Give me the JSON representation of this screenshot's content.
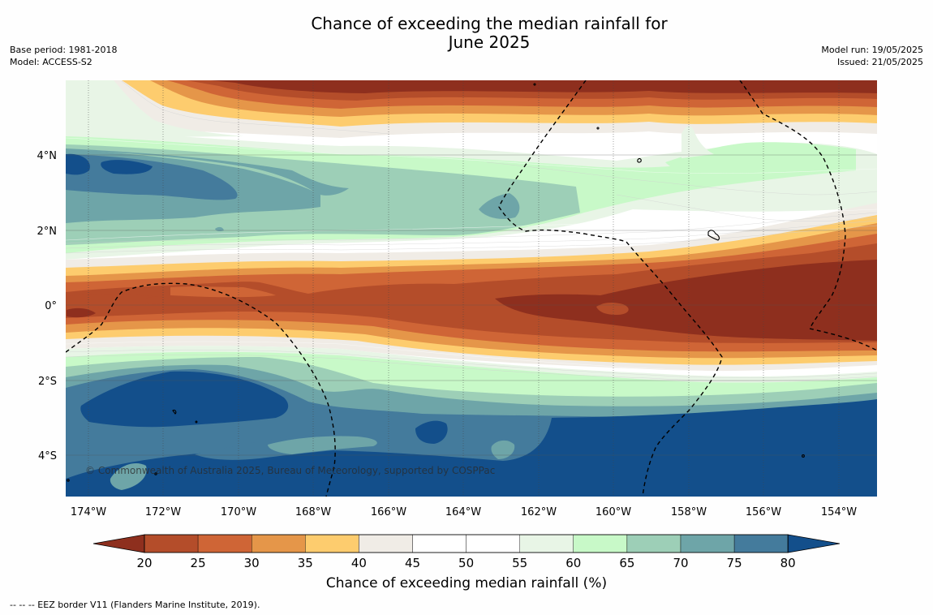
{
  "title_line1": "Chance of exceeding the median rainfall for",
  "title_line2": "June 2025",
  "meta_left": [
    "Base period: 1981-2018",
    "Model: ACCESS-S2"
  ],
  "meta_right": [
    "Model run: 19/05/2025",
    "Issued: 21/05/2025"
  ],
  "copyright": "© Commonwealth of Australia 2025, Bureau of Meteorology, supported by COSPPac",
  "lon_labels": [
    "174°W",
    "172°W",
    "170°W",
    "168°W",
    "166°W",
    "164°W",
    "162°W",
    "160°W",
    "158°W",
    "156°W",
    "154°W"
  ],
  "lat_labels": [
    "4°N",
    "2°N",
    "0°",
    "2°S",
    "4°S"
  ],
  "colorbar": {
    "ticks": [
      "20",
      "25",
      "30",
      "35",
      "40",
      "45",
      "50",
      "55",
      "60",
      "65",
      "70",
      "75",
      "80"
    ],
    "colors": [
      "#8e2f1e",
      "#b44d2a",
      "#cf6536",
      "#e59649",
      "#fdcc6e",
      "#f0ece6",
      "#ffffff",
      "#ffffff",
      "#e8f5e6",
      "#c8f9c8",
      "#9dcfb7",
      "#6ea5a8",
      "#447b9c",
      "#134f8b"
    ],
    "title": "Chance of exceeding median rainfall (%)"
  },
  "footnote": "-- -- -- EEZ border V11 (Flanders Marine Institute, 2019)."
}
